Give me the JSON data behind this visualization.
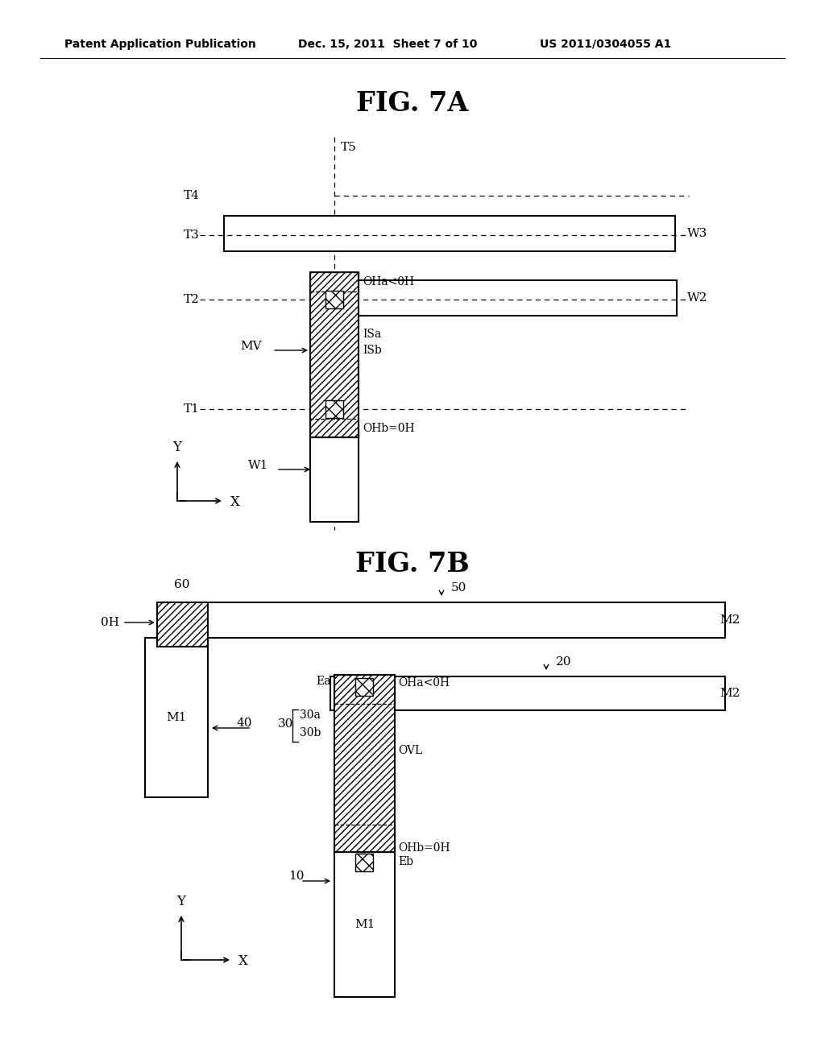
{
  "bg_color": "#ffffff",
  "header_left": "Patent Application Publication",
  "header_mid": "Dec. 15, 2011  Sheet 7 of 10",
  "header_right": "US 2011/0304055 A1",
  "fig7a_title": "FIG. 7A",
  "fig7b_title": "FIG. 7B"
}
